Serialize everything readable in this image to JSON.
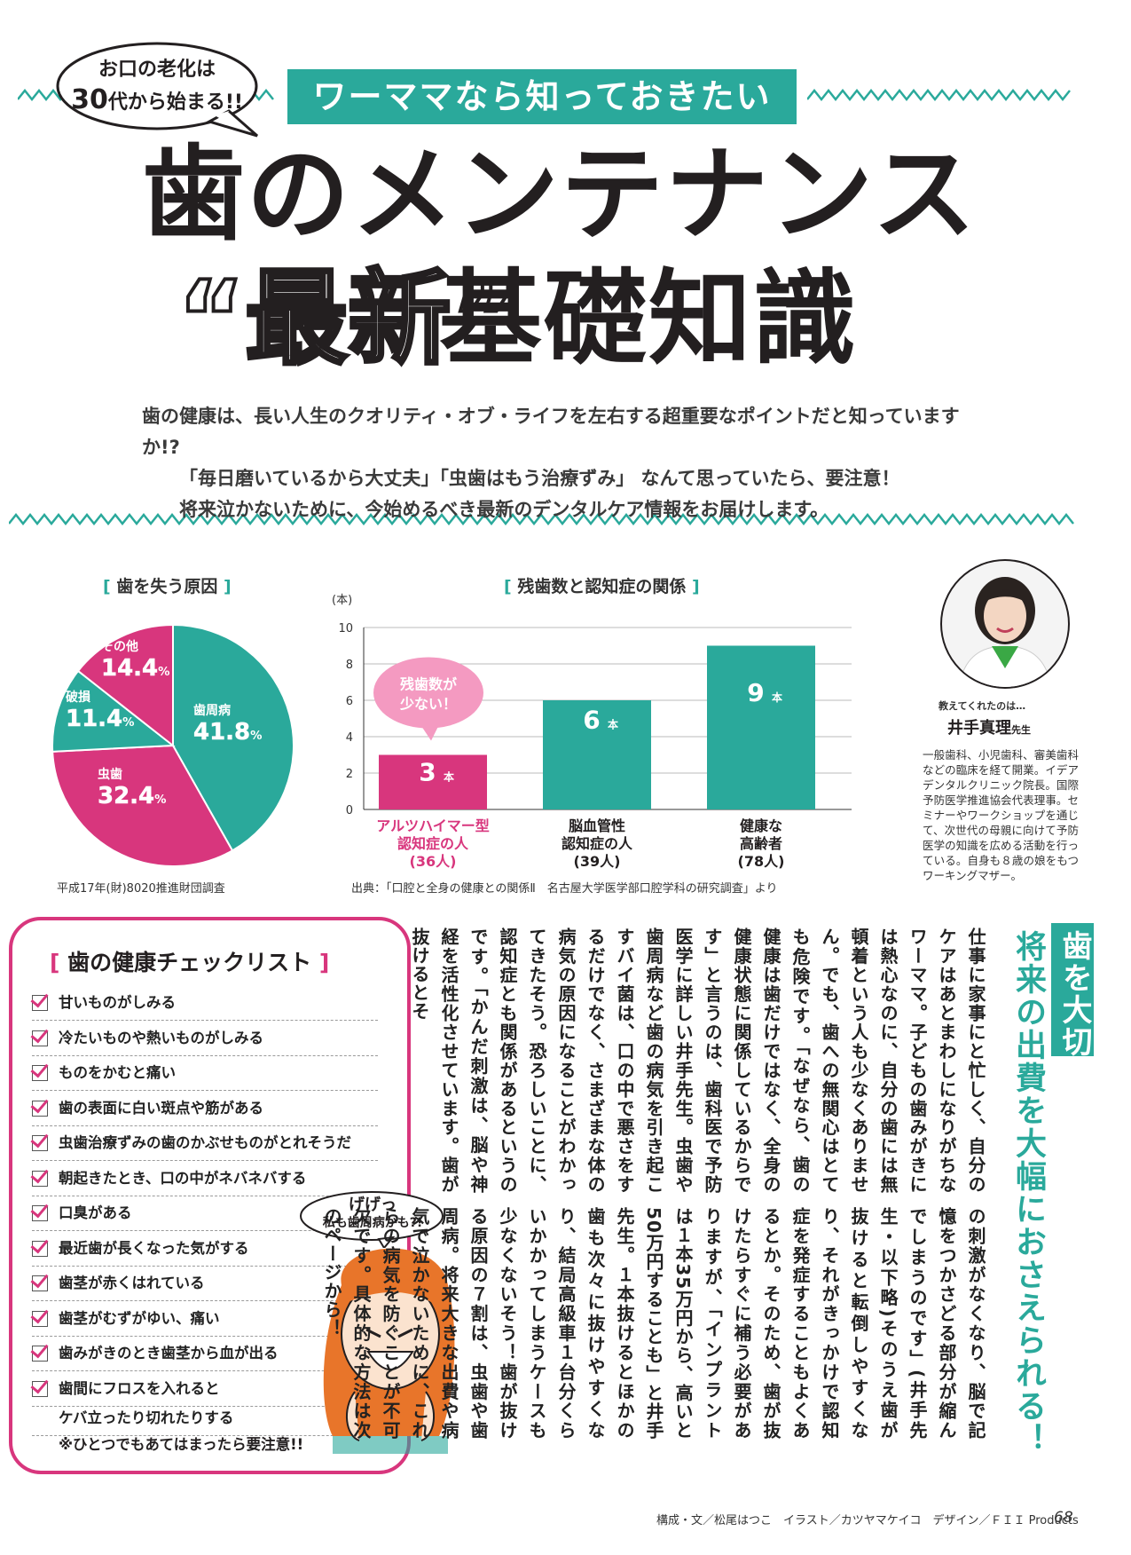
{
  "header": {
    "bubble_line1": "お口の老化は",
    "bubble_line2_big": "30",
    "bubble_line2_rest": "代から始まる!!",
    "banner": "ワーママなら知っておきたい",
    "title_line1": "歯のメンテナンス",
    "title_quoted": "“最新”",
    "title_line2": "基礎知識"
  },
  "lead": {
    "line1": "歯の健康は、長い人生のクオリティ・オブ・ライフを左右する超重要なポイントだと知っていますか!?",
    "line2": "「毎日磨いているから大丈夫」「虫歯はもう治療ずみ」 なんて思っていたら、要注意！",
    "line3": "将来泣かないために、今始めるべき最新のデンタルケア情報をお届けします。"
  },
  "colors": {
    "accent_teal": "#2aa99b",
    "accent_pink": "#d8367d"
  },
  "pie": {
    "heading": "歯を失う原因",
    "slices": [
      {
        "name": "歯周病",
        "value": "41.8",
        "unit": "%"
      },
      {
        "name": "虫歯",
        "value": "32.4",
        "unit": "%"
      },
      {
        "name": "破損",
        "value": "11.4",
        "unit": "%"
      },
      {
        "name": "その他",
        "value": "14.4",
        "unit": "%"
      }
    ],
    "source": "平成17年(財)8020推進財団調査"
  },
  "chart_data": [
    {
      "type": "pie",
      "title": "歯を失う原因",
      "categories": [
        "歯周病",
        "虫歯",
        "破損",
        "その他"
      ],
      "values": [
        41.8,
        32.4,
        11.4,
        14.4
      ],
      "colors": [
        "#2aa99b",
        "#d8367d",
        "#2aa99b",
        "#d8367d"
      ]
    },
    {
      "type": "bar",
      "title": "残歯数と認知症の関係",
      "ylabel": "(本)",
      "ylim": [
        0,
        10
      ],
      "yticks": [
        "0",
        "2",
        "4",
        "6",
        "8",
        "10"
      ],
      "categories": [
        [
          "アルツハイマー型",
          "認知症の人",
          "(36人)"
        ],
        [
          "脳血管性",
          "認知症の人",
          "(39人)"
        ],
        [
          "健康な",
          "高齢者",
          "(78人)"
        ]
      ],
      "values": [
        3,
        6,
        9
      ],
      "value_labels": [
        "3",
        "6",
        "9"
      ],
      "value_unit": "本",
      "colors": [
        "#d8367d",
        "#2aa99b",
        "#2aa99b"
      ],
      "annotation": [
        "残歯数が",
        "少ない！"
      ],
      "grid": true
    }
  ],
  "bar": {
    "heading": "残歯数と認知症の関係",
    "source": "出典：「口腔と全身の健康との関係Ⅱ　名古屋大学医学部口腔学科の研究調査」より"
  },
  "profile": {
    "intro": "教えてくれたのは…",
    "name": "井手真理",
    "suffix": "先生",
    "bio": "一般歯科、小児歯科、審美歯科などの臨床を経て開業。イデアデンタルクリニック院長。国際予防医学推進協会代表理事。セミナーやワークショップを通じて、次世代の母親に向けて予防医学の知識を広める活動を行っている。自身も８歳の娘をもつワーキングマザー。"
  },
  "checklist": {
    "title": "歯の健康チェックリスト",
    "items": [
      "甘いものがしみる",
      "冷たいものや熱いものがしみる",
      "ものをかむと痛い",
      "歯の表面に白い斑点や筋がある",
      "虫歯治療ずみの歯のかぶせものがとれそうだ",
      "朝起きたとき、口の中がネバネバする",
      "口臭がある",
      "最近歯が長くなった気がする",
      "歯茎が赤くはれている",
      "歯茎がむずがゆい、痛い",
      "歯みがきのとき歯茎から血が出る",
      "歯間にフロスを入れると"
    ],
    "item_continuation": "ケバ立ったり切れたりする",
    "note": "※ひとつでもあてはまったら要注意!!"
  },
  "speech": {
    "line1": "げげっ",
    "line2": "私も歯周病かも?!"
  },
  "article": {
    "headline_1": "歯を大切にすることで",
    "headline_2": "将来の出費を大幅におさえられる！",
    "col1": "仕事に家事にと忙しく、自分のケアはあとまわしになりがちなワーママ。子どもの歯みがきには熱心なのに、自分の歯には無頓着という人も少なくありません。でも、歯への無関心はとても危険です。「なぜなら、歯の健康は歯だけではなく、全身の健康状態に関係しているからです」と言うのは、歯科医で予防医学に詳しい井手先生。虫歯や歯周病など歯の病気を引き起こすバイ菌は、口の中で悪さをするだけでなく、さまざまな体の病気の原因になることがわかってきたそう。恐ろしいことに、認知症とも関係があるというのです。「かんだ刺激は、脳や神経を活性化させています。歯が抜けるとそ",
    "col2": "の刺激がなくなり、脳で記憶をつかさどる部分が縮んでしまうのです」(井手先生・以下略)そのうえ歯が抜けると転倒しやすくなり、それがきっかけで認知症を発症することもよくあるとか。そのため、歯が抜けたらすぐに補う必要がありますが、「インプラントは１本35万円から、高いと50万円することも」と井手先生。１本抜けるとほかの歯も次々に抜けやすくなり、結局高級車１台分くらいかかってしまうケースも少なくないそう！歯が抜ける原因の７割は、虫歯や歯周病。将来大きな出費や病気で泣かないために、これらの病気を防ぐことが不可欠です。具体的な方法は次のページから！"
  },
  "footer": {
    "credit": "構成・文／松尾はつこ　イラスト／カツヤマケイコ　デザイン／ＦＩＩ Products",
    "page": "68"
  }
}
